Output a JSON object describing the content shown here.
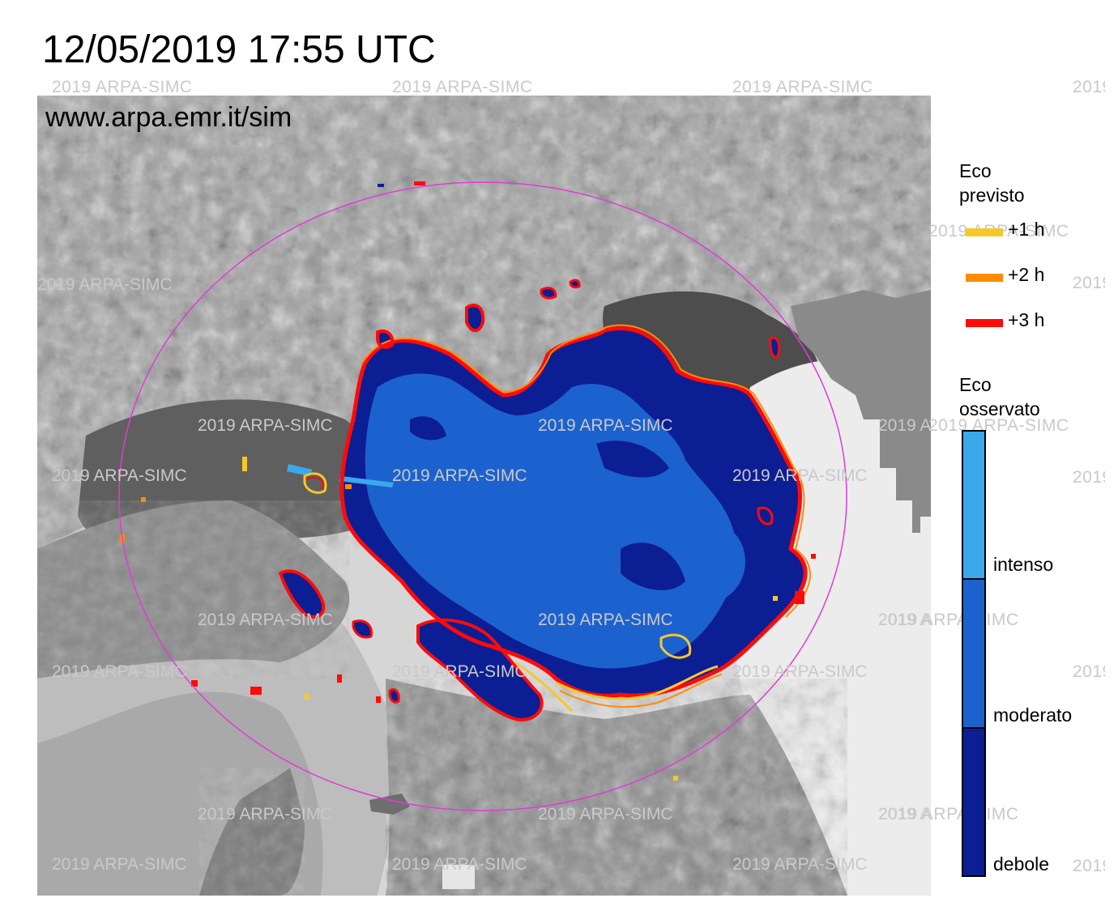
{
  "header": {
    "title": "12/05/2019 17:55 UTC"
  },
  "map": {
    "source_text": "www.arpa.emr.it/sim",
    "watermark_text": "2019 ARPA-SIMC",
    "colors": {
      "range_circle": "#e23ad8",
      "sea": "#dcdcdc",
      "plain": "#e8e8e8",
      "mountains_light": "#b9b9b9",
      "mountains_dark": "#5d5d5d"
    }
  },
  "legend": {
    "forecast": {
      "title_line1": "Eco",
      "title_line2": "previsto",
      "items": [
        {
          "label": "+1 h",
          "color": "#f5c82a"
        },
        {
          "label": "+2 h",
          "color": "#ff8c00"
        },
        {
          "label": "+3 h",
          "color": "#ff0a0a"
        }
      ]
    },
    "observed": {
      "title_line1": "Eco",
      "title_line2": "osservato",
      "levels": [
        {
          "label": "intenso",
          "color": "#3aa9ec"
        },
        {
          "label": "moderato",
          "color": "#1c62cf"
        },
        {
          "label": "debole",
          "color": "#0c1e94"
        }
      ]
    }
  }
}
